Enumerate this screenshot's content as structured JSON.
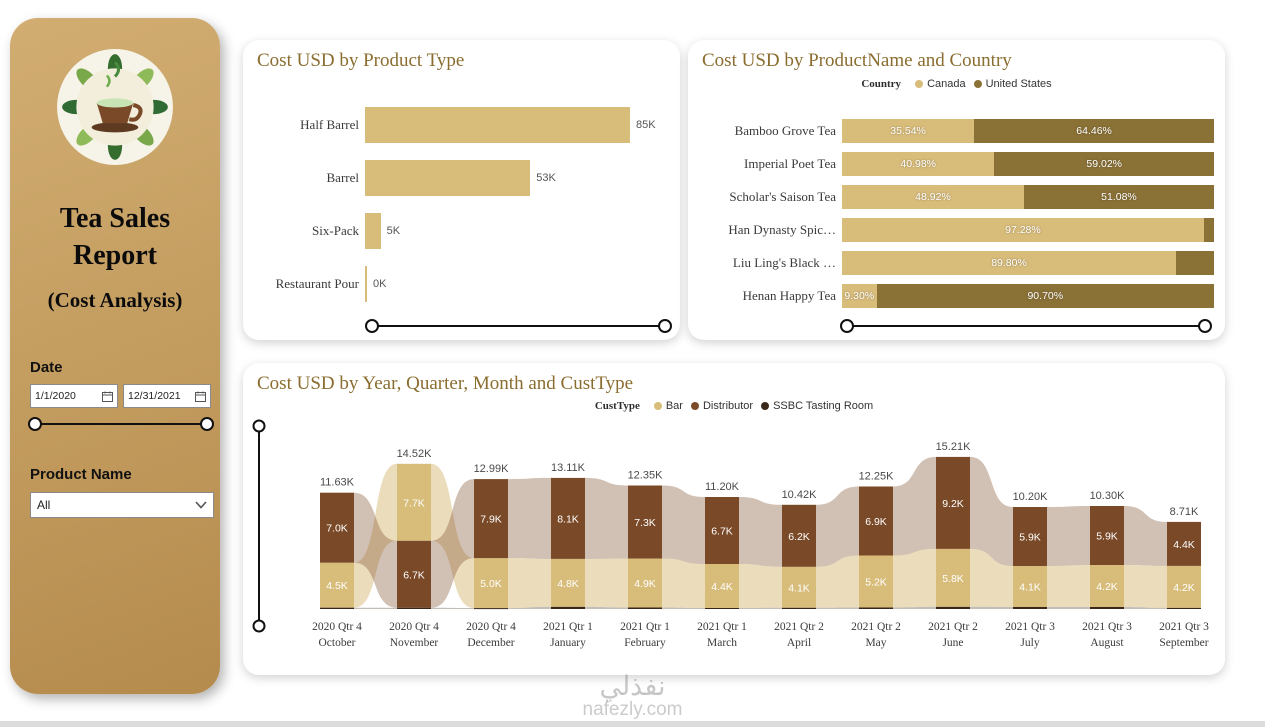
{
  "watermark": {
    "line1": "نفذلي",
    "line2": "nafezly.com"
  },
  "sidebar": {
    "title_line1": "Tea Sales",
    "title_line2": "Report",
    "subtitle": "(Cost Analysis)",
    "date_label": "Date",
    "date_from": "1/1/2020",
    "date_to": "12/31/2021",
    "product_label": "Product Name",
    "product_value": "All"
  },
  "palette": {
    "tan": "#d8bc7a",
    "dark_gold": "#8a7136",
    "distributor_brown": "#7a4a28",
    "ssbc_dark": "#3a2718",
    "title_color": "#8a6d2f"
  },
  "chart_data": [
    {
      "type": "bar",
      "orientation": "horizontal",
      "title": "Cost USD by Product Type",
      "categories": [
        "Half Barrel",
        "Barrel",
        "Six-Pack",
        "Restaurant Pour"
      ],
      "values": [
        85,
        53,
        5,
        0.2
      ],
      "value_labels": [
        "85K",
        "53K",
        "5K",
        "0K"
      ],
      "bar_color": "#d8bc7a"
    },
    {
      "type": "bar",
      "subtype": "stacked-100",
      "orientation": "horizontal",
      "title": "Cost USD by ProductName and Country",
      "legend_title": "Country",
      "categories": [
        "Bamboo Grove Tea",
        "Imperial Poet Tea",
        "Scholar's Saison Tea",
        "Han Dynasty Spic…",
        "Liu Ling's Black …",
        "Henan Happy Tea"
      ],
      "series": [
        {
          "name": "Canada",
          "color": "#d8bc7a",
          "values": [
            35.54,
            40.98,
            48.92,
            97.28,
            89.8,
            9.3
          ]
        },
        {
          "name": "United States",
          "color": "#8a7136",
          "values": [
            64.46,
            59.02,
            51.08,
            2.72,
            10.2,
            90.7
          ]
        }
      ],
      "segment_labels": [
        [
          "35.54%",
          "64.46%"
        ],
        [
          "40.98%",
          "59.02%"
        ],
        [
          "48.92%",
          "51.08%"
        ],
        [
          "97.28%",
          ""
        ],
        [
          "89.80%",
          ""
        ],
        [
          "9.30%",
          "90.70%"
        ]
      ]
    },
    {
      "type": "ribbon",
      "title": "Cost USD by Year, Quarter, Month and CustType",
      "legend_title": "CustType",
      "categories_line1": [
        "2020 Qtr 4",
        "2020 Qtr 4",
        "2020 Qtr 4",
        "2021 Qtr 1",
        "2021 Qtr 1",
        "2021 Qtr 1",
        "2021 Qtr 2",
        "2021 Qtr 2",
        "2021 Qtr 2",
        "2021 Qtr 3",
        "2021 Qtr 3",
        "2021 Qtr 3"
      ],
      "categories_line2": [
        "October",
        "November",
        "December",
        "January",
        "February",
        "March",
        "April",
        "May",
        "June",
        "July",
        "August",
        "September"
      ],
      "totals": [
        "11.63K",
        "14.52K",
        "12.99K",
        "13.11K",
        "12.35K",
        "11.20K",
        "10.42K",
        "12.25K",
        "15.21K",
        "10.20K",
        "10.30K",
        "8.71K"
      ],
      "series": [
        {
          "name": "Bar",
          "color": "#d8bc7a",
          "ribbon_opacity": 0.5,
          "values": [
            4.5,
            7.7,
            5.0,
            4.8,
            4.9,
            4.4,
            4.1,
            5.2,
            5.8,
            4.1,
            4.2,
            4.2
          ]
        },
        {
          "name": "Distributor",
          "color": "#7a4a28",
          "ribbon_opacity": 0.35,
          "values": [
            7.0,
            6.7,
            7.9,
            8.1,
            7.3,
            6.7,
            6.2,
            6.9,
            9.2,
            5.9,
            5.9,
            4.4
          ]
        },
        {
          "name": "SSBC Tasting Room",
          "color": "#3a2718",
          "ribbon_opacity": 0.3,
          "values": [
            0.13,
            0.12,
            0.09,
            0.21,
            0.15,
            0.1,
            0.12,
            0.15,
            0.21,
            0.2,
            0.2,
            0.11
          ]
        }
      ]
    }
  ]
}
